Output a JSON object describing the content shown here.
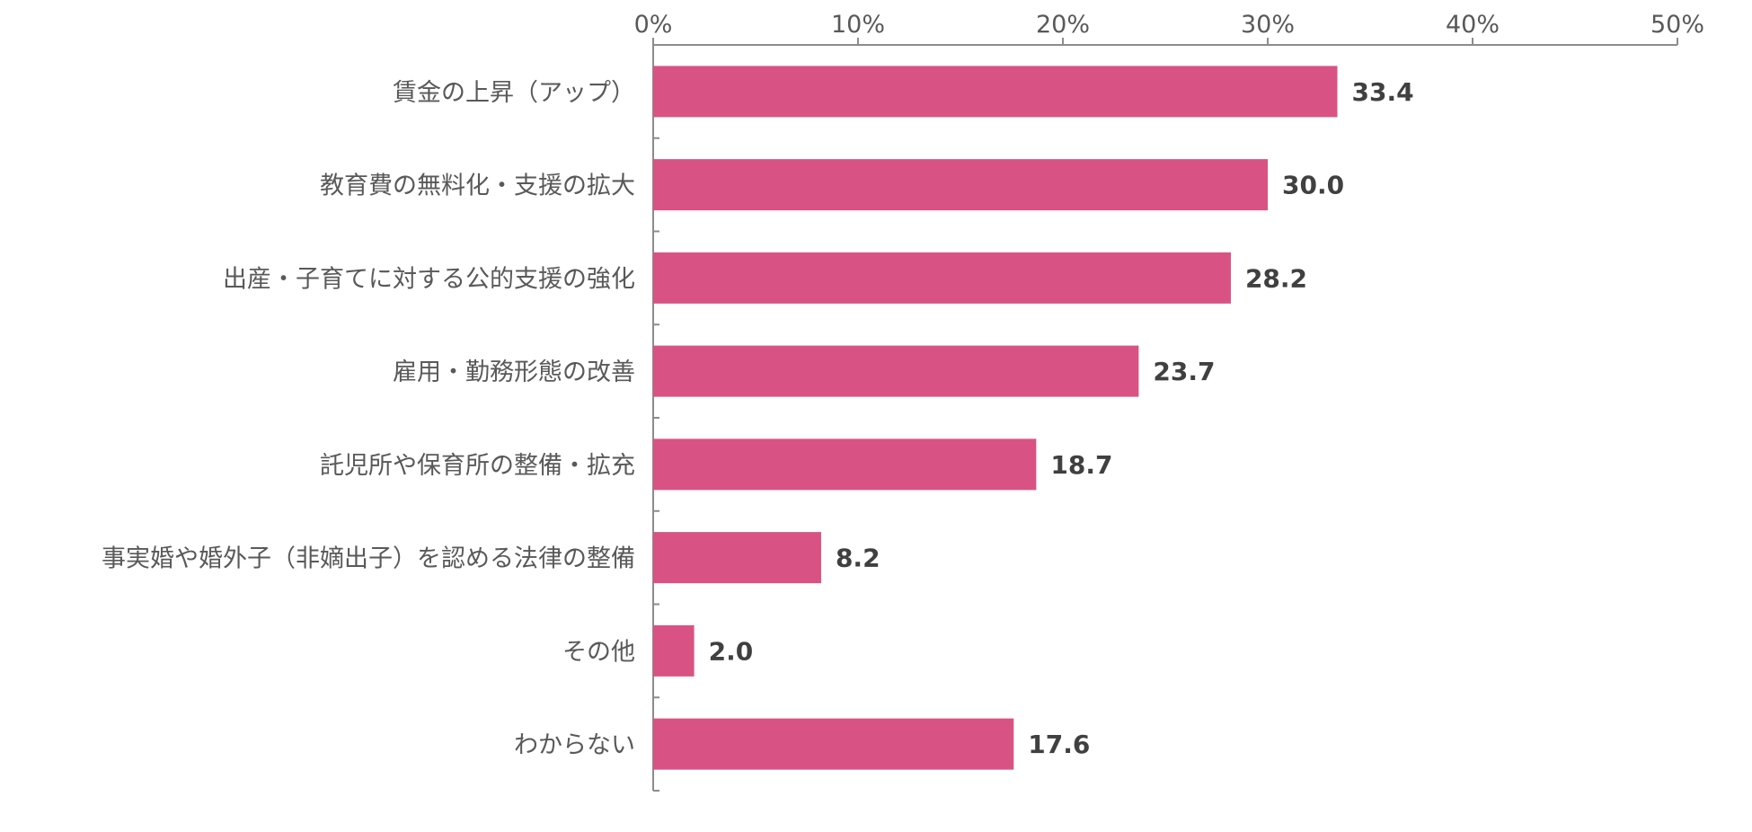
{
  "chart_data": {
    "type": "bar",
    "orientation": "horizontal",
    "categories": [
      "賃金の上昇（アップ）",
      "教育費の無料化・支援の拡大",
      "出産・子育てに対する公的支援の強化",
      "雇用・勤務形態の改善",
      "託児所や保育所の整備・拡充",
      "事実婚や婚外子（非嫡出子）を認める法律の整備",
      "その他",
      "わからない"
    ],
    "values": [
      33.4,
      30.0,
      28.2,
      23.7,
      18.7,
      8.2,
      2.0,
      17.6
    ],
    "value_labels": [
      "33.4",
      "30.0",
      "28.2",
      "23.7",
      "18.7",
      "8.2",
      "2.0",
      "17.6"
    ],
    "xlim": [
      0,
      50
    ],
    "x_ticks": [
      0,
      10,
      20,
      30,
      40,
      50
    ],
    "x_tick_labels": [
      "0%",
      "10%",
      "20%",
      "30%",
      "40%",
      "50%"
    ],
    "x_axis_position": "top",
    "grid": false,
    "bar_color": "#d85383",
    "title": "",
    "xlabel": "",
    "ylabel": ""
  }
}
